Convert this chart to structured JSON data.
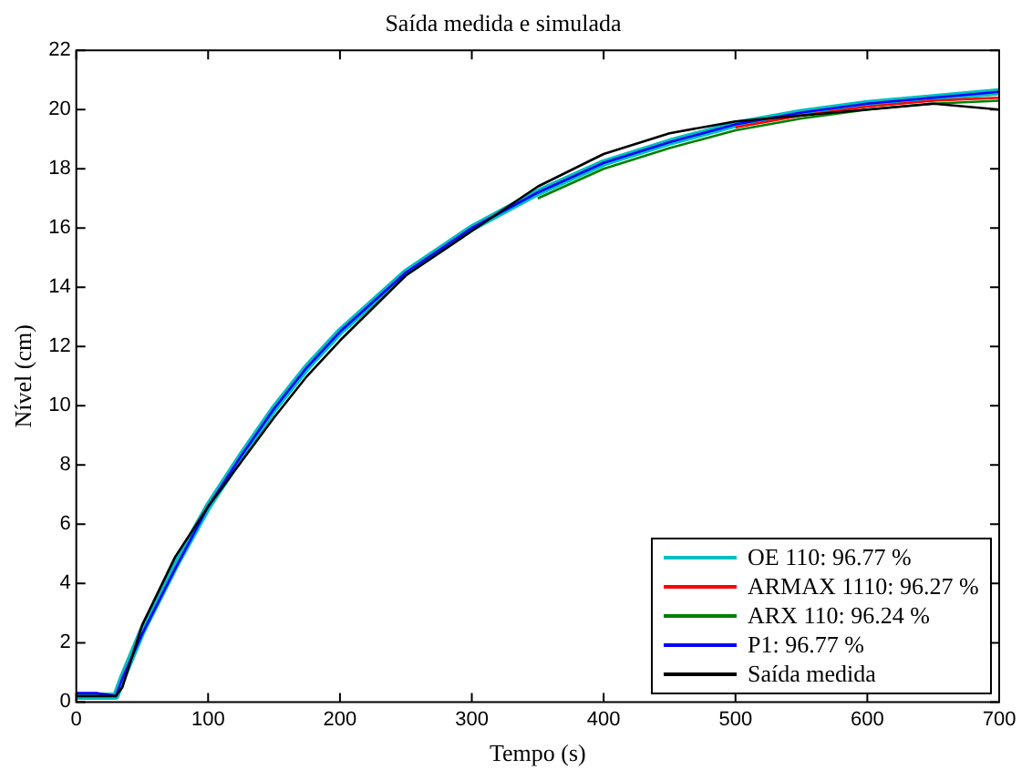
{
  "chart_data": {
    "type": "line",
    "title": "Saída medida e simulada",
    "xlabel": "Tempo (s)",
    "ylabel": "Nível (cm)",
    "x": [
      0,
      15,
      30,
      35,
      50,
      75,
      100,
      125,
      150,
      175,
      200,
      250,
      300,
      350,
      400,
      450,
      500,
      550,
      600,
      650,
      700
    ],
    "series": [
      {
        "name": "OE 110: 96.77 %",
        "color": "#00bfbf",
        "values": [
          0.2,
          0.2,
          0.2,
          0.8,
          2.4,
          4.6,
          6.6,
          8.3,
          9.9,
          11.3,
          12.5,
          14.5,
          16.0,
          17.2,
          18.2,
          18.9,
          19.5,
          19.9,
          20.2,
          20.4,
          20.6
        ]
      },
      {
        "name": "ARMAX 1110: 96.27 %",
        "color": "#ff0000",
        "values": [
          null,
          null,
          null,
          null,
          null,
          null,
          null,
          null,
          null,
          null,
          null,
          null,
          null,
          null,
          null,
          null,
          19.4,
          19.8,
          20.1,
          20.3,
          20.4
        ]
      },
      {
        "name": "ARX 110: 96.24 %",
        "color": "#008000",
        "values": [
          null,
          null,
          null,
          null,
          null,
          null,
          null,
          null,
          null,
          null,
          null,
          null,
          null,
          17.0,
          18.0,
          18.7,
          19.3,
          19.7,
          20.0,
          20.2,
          20.3
        ]
      },
      {
        "name": "P1: 96.77 %",
        "color": "#0000ff",
        "values": [
          0.3,
          0.3,
          0.2,
          0.8,
          2.3,
          4.5,
          6.6,
          8.3,
          9.9,
          11.3,
          12.5,
          14.5,
          16.0,
          17.2,
          18.2,
          18.9,
          19.5,
          19.9,
          20.2,
          20.4,
          20.6
        ]
      },
      {
        "name": "Saída medida",
        "color": "#000000",
        "values": [
          0.2,
          0.2,
          0.2,
          0.5,
          2.6,
          4.9,
          6.6,
          8.1,
          9.6,
          11.0,
          12.2,
          14.4,
          15.9,
          17.4,
          18.5,
          19.2,
          19.6,
          19.8,
          20.0,
          20.2,
          20.0
        ]
      }
    ],
    "xlim": [
      0,
      700
    ],
    "xticks": [
      0,
      100,
      200,
      300,
      400,
      500,
      600,
      700
    ],
    "ylim": [
      0,
      22
    ],
    "yticks": [
      0,
      2,
      4,
      6,
      8,
      10,
      12,
      14,
      16,
      18,
      20,
      22
    ],
    "grid": false,
    "legend": "bottom right",
    "marker": "none",
    "line_style": "solid"
  }
}
